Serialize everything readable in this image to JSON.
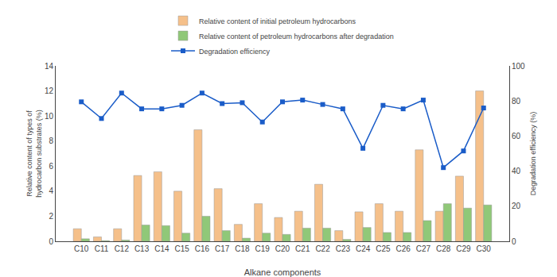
{
  "chart_data": {
    "type": "bar",
    "categories": [
      "C10",
      "C11",
      "C12",
      "C13",
      "C14",
      "C15",
      "C16",
      "C17",
      "C18",
      "C19",
      "C20",
      "C21",
      "C22",
      "C23",
      "C24",
      "C25",
      "C26",
      "C27",
      "C28",
      "C29",
      "C30"
    ],
    "series": [
      {
        "name": "Relative content of initial petroleum hydrocarbons",
        "type": "bar",
        "color": "#F5C08A",
        "values": [
          1.0,
          0.35,
          1.0,
          5.25,
          5.55,
          4.0,
          8.9,
          4.2,
          1.35,
          3.0,
          1.9,
          2.4,
          4.55,
          0.85,
          2.35,
          3.0,
          2.4,
          7.3,
          2.4,
          5.2,
          12.0
        ]
      },
      {
        "name": "Relative content of petroleum hydrocarbons after degradation",
        "type": "bar",
        "color": "#90C878",
        "values": [
          0.2,
          0.05,
          0.1,
          1.3,
          1.25,
          0.65,
          2.0,
          0.85,
          0.25,
          0.65,
          0.55,
          1.05,
          1.05,
          0.15,
          1.1,
          0.7,
          0.7,
          1.65,
          3.0,
          2.65,
          2.9
        ]
      },
      {
        "name": "Degradation efficiency",
        "type": "line",
        "axis": "y2",
        "color": "#1A5CC8",
        "marker": "square",
        "values": [
          79.5,
          70.0,
          84.5,
          75.5,
          75.5,
          77.5,
          84.5,
          78.5,
          79.0,
          68.0,
          79.5,
          80.5,
          78.0,
          75.5,
          53.0,
          77.5,
          75.5,
          80.5,
          42.0,
          51.5,
          76.0
        ]
      }
    ],
    "xlabel": "Alkane components",
    "ylabel": "Relative content of types of hydrocarbon substrates (%)",
    "y2label": "Degradation efficiency (%)",
    "ylim": [
      0,
      14
    ],
    "yticks": [
      0,
      2,
      4,
      6,
      8,
      10,
      12,
      14
    ],
    "y2lim": [
      0,
      100
    ],
    "y2ticks": [
      0,
      20,
      40,
      60,
      80,
      100
    ],
    "grid": false,
    "legend": "top"
  }
}
